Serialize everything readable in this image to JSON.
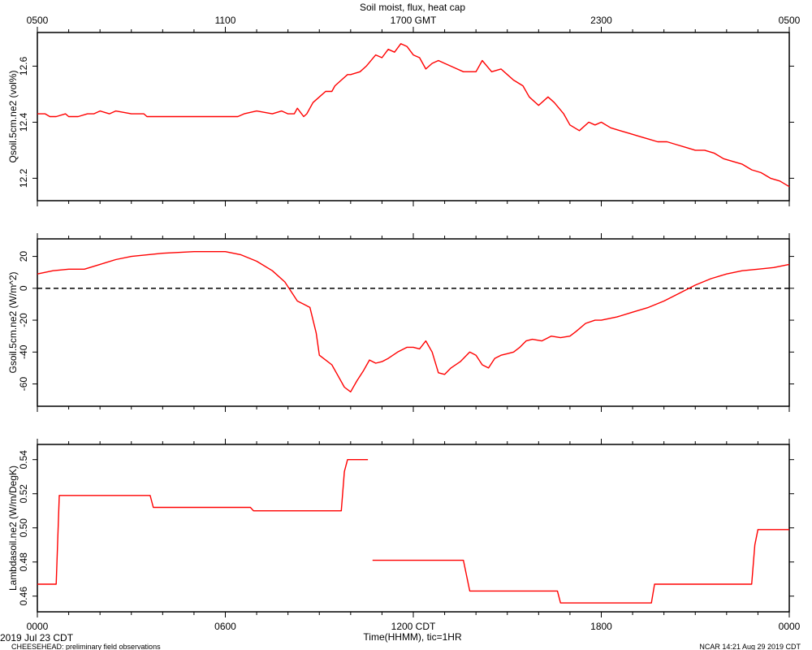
{
  "figure": {
    "title": "Soil moist, flux, heat cap",
    "top_axis_labels": [
      "0500",
      "1100",
      "1700 GMT",
      "2300",
      "0500"
    ],
    "bottom_axis_labels": [
      "0000",
      "0600",
      "1200 CDT",
      "1800",
      "0000"
    ],
    "xlabel": "Time(HHMM), tic=1HR",
    "date_label": "2019 Jul 23 CDT",
    "footer_left": "CHEESEHEAD: preliminary field observations",
    "footer_right": "NCAR 14:21 Aug 29 2019 CDT",
    "line_color": "#ff0000",
    "zero_line_color": "#000000"
  },
  "chart_data": [
    {
      "type": "line",
      "ylabel": "Qsoil.5cm.ne2 (vol%)",
      "xlim": [
        0,
        24
      ],
      "ylim": [
        12.12,
        12.72
      ],
      "yticks": [
        12.2,
        12.4,
        12.6
      ],
      "tick_labels": [
        "12.2",
        "12.4",
        "12.6"
      ],
      "series": [
        {
          "x": [
            0,
            0.25,
            0.4,
            0.6,
            0.9,
            1.0,
            1.1,
            1.3,
            1.6,
            1.8,
            2.0,
            2.3,
            2.5,
            3.0,
            3.4,
            3.5,
            3.6,
            4.0,
            5.0,
            6.0,
            6.4,
            6.6,
            7.0,
            7.5,
            7.8,
            8.0,
            8.2,
            8.3,
            8.5,
            8.6,
            8.8,
            9.0,
            9.2,
            9.4,
            9.5,
            9.7,
            9.9,
            10.0,
            10.3,
            10.5,
            10.8,
            11.0,
            11.2,
            11.4,
            11.6,
            11.8,
            12.0,
            12.2,
            12.4,
            12.6,
            12.8,
            13.0,
            13.4,
            13.6,
            13.8,
            14.0,
            14.2,
            14.5,
            14.8,
            15.0,
            15.2,
            15.5,
            15.7,
            16.0,
            16.3,
            16.5,
            16.8,
            17.0,
            17.3,
            17.6,
            17.8,
            18.0,
            18.3,
            18.6,
            18.9,
            19.2,
            19.5,
            19.8,
            20.1,
            20.4,
            20.7,
            21.0,
            21.3,
            21.6,
            21.9,
            22.2,
            22.5,
            22.8,
            23.1,
            23.4,
            23.7,
            24.0
          ],
          "y": [
            12.43,
            12.43,
            12.42,
            12.42,
            12.43,
            12.42,
            12.42,
            12.42,
            12.43,
            12.43,
            12.44,
            12.43,
            12.44,
            12.43,
            12.43,
            12.42,
            12.42,
            12.42,
            12.42,
            12.42,
            12.42,
            12.43,
            12.44,
            12.43,
            12.44,
            12.43,
            12.43,
            12.45,
            12.42,
            12.43,
            12.47,
            12.49,
            12.51,
            12.51,
            12.53,
            12.55,
            12.57,
            12.57,
            12.58,
            12.6,
            12.64,
            12.63,
            12.66,
            12.65,
            12.68,
            12.67,
            12.64,
            12.63,
            12.59,
            12.61,
            12.62,
            12.61,
            12.59,
            12.58,
            12.58,
            12.58,
            12.62,
            12.58,
            12.59,
            12.57,
            12.55,
            12.53,
            12.49,
            12.46,
            12.49,
            12.47,
            12.43,
            12.39,
            12.37,
            12.4,
            12.39,
            12.4,
            12.38,
            12.37,
            12.36,
            12.35,
            12.34,
            12.33,
            12.33,
            12.32,
            12.31,
            12.3,
            12.3,
            12.29,
            12.27,
            12.26,
            12.25,
            12.23,
            12.22,
            12.2,
            12.19,
            12.17
          ]
        }
      ]
    },
    {
      "type": "line",
      "ylabel": "Gsoil.5cm.ne2 (W/m^2)",
      "xlim": [
        0,
        24
      ],
      "ylim": [
        -74,
        31
      ],
      "yticks": [
        -60,
        -40,
        -20,
        0,
        20
      ],
      "tick_labels": [
        "-60",
        "-40",
        "-20",
        "0",
        "20"
      ],
      "zero_line": 0,
      "series": [
        {
          "x": [
            0,
            0.5,
            1.0,
            1.5,
            2.0,
            2.5,
            3.0,
            4.0,
            5.0,
            6.0,
            6.5,
            7.0,
            7.5,
            7.9,
            8.1,
            8.3,
            8.5,
            8.7,
            8.9,
            9.0,
            9.2,
            9.4,
            9.6,
            9.8,
            10.0,
            10.2,
            10.4,
            10.6,
            10.8,
            11.0,
            11.2,
            11.5,
            11.8,
            12.0,
            12.2,
            12.4,
            12.6,
            12.8,
            13.0,
            13.2,
            13.5,
            13.8,
            14.0,
            14.2,
            14.4,
            14.6,
            14.8,
            15.0,
            15.2,
            15.4,
            15.6,
            15.8,
            16.1,
            16.4,
            16.7,
            17.0,
            17.2,
            17.5,
            17.8,
            18.0,
            18.5,
            19.0,
            19.5,
            20.0,
            20.5,
            21.0,
            21.5,
            22.0,
            22.5,
            23.0,
            23.5,
            24.0
          ],
          "y": [
            9,
            11,
            12,
            12,
            15,
            18,
            20,
            22,
            23,
            23,
            21,
            17,
            11,
            4,
            -2,
            -8,
            -10,
            -12,
            -28,
            -42,
            -45,
            -48,
            -55,
            -62,
            -65,
            -58,
            -52,
            -45,
            -47,
            -46,
            -44,
            -40,
            -37,
            -37,
            -38,
            -33,
            -40,
            -53,
            -54,
            -50,
            -46,
            -40,
            -42,
            -48,
            -50,
            -44,
            -42,
            -41,
            -40,
            -37,
            -33,
            -32,
            -33,
            -30,
            -31,
            -30,
            -27,
            -22,
            -20,
            -20,
            -18,
            -15,
            -12,
            -8,
            -3,
            2,
            6,
            9,
            11,
            12,
            13,
            15
          ]
        }
      ]
    },
    {
      "type": "line",
      "ylabel": "Lambdasoil.ne2 (W/m/DegK)",
      "xlim": [
        0,
        24
      ],
      "ylim": [
        0.4508,
        0.5489
      ],
      "yticks": [
        0.46,
        0.48,
        0.5,
        0.52,
        0.54
      ],
      "tick_labels": [
        "0.46",
        "0.48",
        "0.50",
        "0.52",
        "0.54"
      ],
      "series": [
        {
          "segments": [
            {
              "x": [
                0,
                0.6,
                0.7,
                3.6,
                3.7,
                6.8,
                6.9,
                9.7,
                9.8,
                9.9,
                10.0,
                10.55
              ],
              "y": [
                0.467,
                0.467,
                0.519,
                0.519,
                0.512,
                0.512,
                0.51,
                0.51,
                0.533,
                0.54,
                0.54,
                0.54
              ]
            },
            {
              "x": [
                10.7,
                13.6,
                13.7,
                13.8,
                16.6,
                16.7,
                19.6,
                19.7,
                22.8,
                22.9,
                23.0,
                24.0
              ],
              "y": [
                0.481,
                0.481,
                0.472,
                0.463,
                0.463,
                0.456,
                0.456,
                0.467,
                0.467,
                0.49,
                0.499,
                0.499
              ]
            }
          ]
        }
      ]
    }
  ]
}
